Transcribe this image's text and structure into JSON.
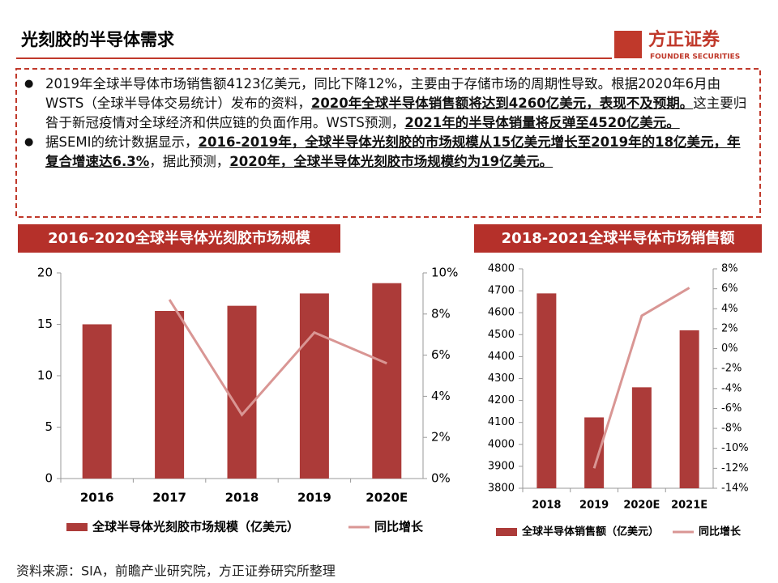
{
  "header": {
    "title": "光刻胶的半导体需求",
    "logo": "方正证券",
    "logo_sub": "FOUNDER SECURITIES"
  },
  "bullets": [
    [
      {
        "text": "2019年全球半导体市场销售额4123亿美元，同比下降12%，主要由于存储市场的周期性导致。根据2020年6月由WSTS（全球半导体交易统计）发布的资料，",
        "bold": false
      },
      {
        "text": "2020年全球半导体销售额将达到4260亿美元，表现不及预期。",
        "bold": true
      },
      {
        "text": "这主要归咎于新冠疫情对全球经济和供应链的负面作用。WSTS预测，",
        "bold": false
      },
      {
        "text": "2021年的半导体销量将反弹至4520亿美元。",
        "bold": true
      }
    ],
    [
      {
        "text": "据SEMI的统计数据显示，",
        "bold": false
      },
      {
        "text": "2016-2019年，全球半导体光刻胶的市场规模从15亿美元增长至2019年的18亿美元，年复合增速达6.3%",
        "bold": true
      },
      {
        "text": "，据此预测，",
        "bold": false
      },
      {
        "text": "2020年，全球半导体光刻胶市场规模约为19亿美元。",
        "bold": true
      }
    ]
  ],
  "chart_data": [
    {
      "type": "bar",
      "title": "2016-2020全球半导体光刻胶市场规模",
      "categories": [
        "2016",
        "2017",
        "2018",
        "2019",
        "2020E"
      ],
      "series": [
        {
          "name": "全球半导体光刻胶市场规模（亿美元）",
          "type": "bar",
          "color": "#ac3b39",
          "values": [
            15,
            16.3,
            16.8,
            18,
            19
          ]
        },
        {
          "name": "同比增长",
          "type": "line",
          "axis": "y2",
          "color": "#d99694",
          "values": [
            null,
            8.7,
            3.1,
            7.1,
            5.6
          ]
        }
      ],
      "ylim": [
        0,
        20
      ],
      "yticks": [
        0,
        5,
        10,
        15,
        20
      ],
      "y2lim": [
        0,
        10
      ],
      "y2ticks": [
        {
          "value": 0,
          "label": "0%"
        },
        {
          "value": 2,
          "label": "2%"
        },
        {
          "value": 4,
          "label": "4%"
        },
        {
          "value": 6,
          "label": "6%"
        },
        {
          "value": 8,
          "label": "8%"
        },
        {
          "value": 10,
          "label": "10%"
        }
      ]
    },
    {
      "type": "bar",
      "title": "2018-2021全球半导体市场销售额",
      "categories": [
        "2018",
        "2019",
        "2020E",
        "2021E"
      ],
      "series": [
        {
          "name": "全球半导体销售额（亿美元）",
          "type": "bar",
          "color": "#ac3b39",
          "values": [
            4688,
            4123,
            4260,
            4520
          ]
        },
        {
          "name": "同比增长",
          "type": "line",
          "axis": "y2",
          "color": "#d99694",
          "values": [
            null,
            -12.0,
            3.3,
            6.1
          ]
        }
      ],
      "ylim": [
        3800,
        4800
      ],
      "yticks": [
        3800,
        3900,
        4000,
        4100,
        4200,
        4300,
        4400,
        4500,
        4600,
        4700,
        4800
      ],
      "y2lim": [
        -14,
        8
      ],
      "y2ticks": [
        {
          "value": -14,
          "label": "-14%"
        },
        {
          "value": -12,
          "label": "-12%"
        },
        {
          "value": -10,
          "label": "-10%"
        },
        {
          "value": -8,
          "label": "-8%"
        },
        {
          "value": -6,
          "label": "-6%"
        },
        {
          "value": -4,
          "label": "-4%"
        },
        {
          "value": -2,
          "label": "-2%"
        },
        {
          "value": 0,
          "label": "0%"
        },
        {
          "value": 2,
          "label": "2%"
        },
        {
          "value": 4,
          "label": "4%"
        },
        {
          "value": 6,
          "label": "6%"
        },
        {
          "value": 8,
          "label": "8%"
        }
      ]
    }
  ],
  "footer": "资料来源：SIA，前瞻产业研究院，方正证券研究所整理"
}
